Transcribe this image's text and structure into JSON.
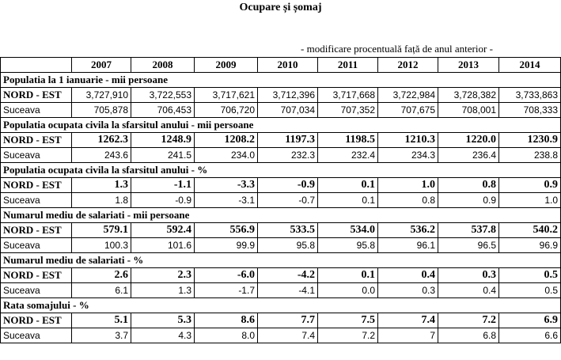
{
  "title": "Ocupare și șomaj",
  "subtitle": "- modificare procentuală față de anul anterior -",
  "years": [
    "2007",
    "2008",
    "2009",
    "2010",
    "2011",
    "2012",
    "2013",
    "2014"
  ],
  "sections": [
    {
      "heading": "Populatia la 1 ianuarie - mii persoane",
      "rows": [
        {
          "label": "NORD - EST",
          "values": [
            "3,727,910",
            "3,722,553",
            "3,717,621",
            "3,712,396",
            "3,717,668",
            "3,722,984",
            "3,728,382",
            "3,733,863"
          ]
        },
        {
          "label": "Suceava",
          "values": [
            "705,878",
            "706,453",
            "706,720",
            "707,034",
            "707,352",
            "707,675",
            "708,001",
            "708,333"
          ]
        }
      ]
    },
    {
      "heading": "Populatia ocupata civila la sfarsitul anului - mii persoane",
      "rows": [
        {
          "label": "NORD - EST",
          "values": [
            "1262.3",
            "1248.9",
            "1208.2",
            "1197.3",
            "1198.5",
            "1210.3",
            "1220.0",
            "1230.9"
          ]
        },
        {
          "label": "Suceava",
          "values": [
            "243.6",
            "241.5",
            "234.0",
            "232.3",
            "232.4",
            "234.3",
            "236.4",
            "238.8"
          ]
        }
      ]
    },
    {
      "heading": "Populatia ocupata civila la sfarsitul anului - %",
      "rows": [
        {
          "label": "NORD - EST",
          "values": [
            "1.3",
            "-1.1",
            "-3.3",
            "-0.9",
            "0.1",
            "1.0",
            "0.8",
            "0.9"
          ]
        },
        {
          "label": "Suceava",
          "values": [
            "1.8",
            "-0.9",
            "-3.1",
            "-0.7",
            "0.1",
            "0.8",
            "0.9",
            "1.0"
          ]
        }
      ]
    },
    {
      "heading": "Numarul mediu de salariati - mii persoane",
      "rows": [
        {
          "label": "NORD - EST",
          "values": [
            "579.1",
            "592.4",
            "556.9",
            "533.5",
            "534.0",
            "536.2",
            "537.8",
            "540.2"
          ]
        },
        {
          "label": "Suceava",
          "values": [
            "100.3",
            "101.6",
            "99.9",
            "95.8",
            "95.8",
            "96.1",
            "96.5",
            "96.9"
          ]
        }
      ]
    },
    {
      "heading": "Numarul mediu de salariati - %",
      "rows": [
        {
          "label": "NORD - EST",
          "values": [
            "2.6",
            "2.3",
            "-6.0",
            "-4.2",
            "0.1",
            "0.4",
            "0.3",
            "0.5"
          ]
        },
        {
          "label": "Suceava",
          "values": [
            "6.1",
            "1.3",
            "-1.7",
            "-4.1",
            "0.0",
            "0.3",
            "0.4",
            "0.5"
          ]
        }
      ]
    },
    {
      "heading": "Rata somajului - %",
      "rows": [
        {
          "label": "NORD - EST",
          "values": [
            "5.1",
            "5.3",
            "8.6",
            "7.7",
            "7.5",
            "7.4",
            "7.2",
            "6.9"
          ]
        },
        {
          "label": "Suceava",
          "values": [
            "3.7",
            "4.3",
            "8.0",
            "7.4",
            "7.2",
            "7",
            "6.8",
            "6.6"
          ]
        }
      ]
    }
  ]
}
